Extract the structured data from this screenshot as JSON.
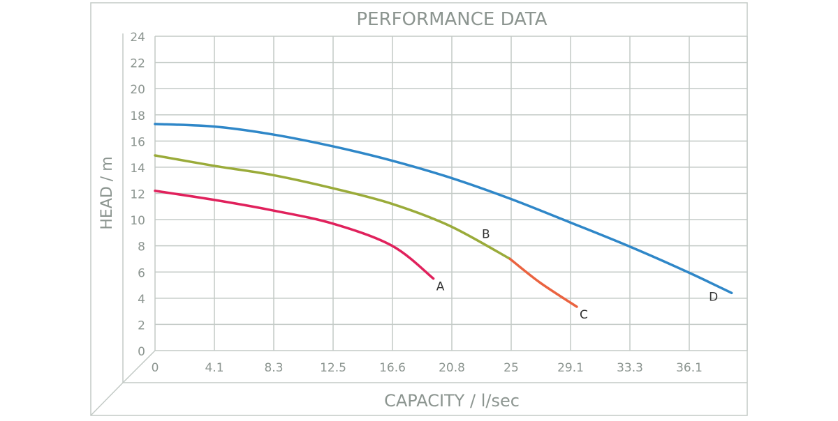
{
  "chart_data": {
    "type": "line",
    "title": "PERFORMANCE DATA",
    "xlabel": "CAPACITY / l/sec",
    "ylabel": "HEAD / m",
    "x_tick_labels": [
      "0",
      "4.1",
      "8.3",
      "12.5",
      "16.6",
      "20.8",
      "25",
      "29.1",
      "33.3",
      "36.1"
    ],
    "y_ticks": [
      0,
      2,
      4,
      6,
      8,
      10,
      12,
      14,
      16,
      18,
      20,
      22,
      24
    ],
    "xlim": [
      0,
      41.7
    ],
    "ylim": [
      0,
      24
    ],
    "grid": true,
    "series": [
      {
        "name": "A",
        "color": "#e0215c",
        "x": [
          0,
          4.2,
          8.3,
          12.5,
          16.7,
          19.6
        ],
        "y": [
          12.2,
          11.5,
          10.7,
          9.7,
          8.0,
          5.5
        ]
      },
      {
        "name": "B",
        "color": "#9aab3a",
        "x": [
          0,
          4.2,
          8.3,
          12.5,
          16.7,
          20.8,
          25.0
        ],
        "y": [
          14.9,
          14.1,
          13.4,
          12.4,
          11.2,
          9.5,
          7.0
        ]
      },
      {
        "name": "C",
        "color": "#ea6340",
        "x": [
          25.0,
          27.1,
          29.7
        ],
        "y": [
          7.0,
          5.2,
          3.35
        ]
      },
      {
        "name": "D",
        "color": "#2f87c8",
        "x": [
          0,
          4.2,
          8.3,
          12.5,
          16.7,
          20.8,
          25.0,
          29.2,
          33.3,
          37.5,
          40.6
        ],
        "y": [
          17.3,
          17.1,
          16.5,
          15.6,
          14.5,
          13.2,
          11.6,
          9.8,
          8.0,
          6.0,
          4.4
        ]
      }
    ]
  }
}
